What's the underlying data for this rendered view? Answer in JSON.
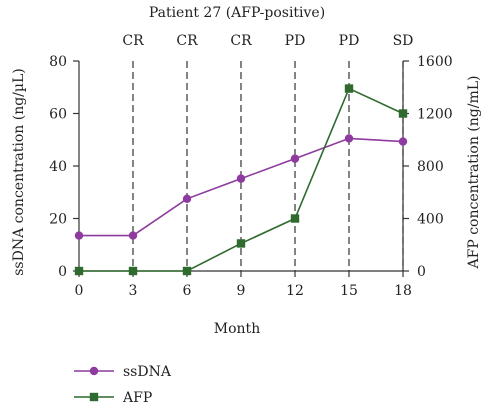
{
  "chart_data": {
    "type": "line",
    "title": "Patient 27 (AFP-positive)",
    "xlabel": "Month",
    "ylabel_left": "ssDNA concentration (ng/µL)",
    "ylabel_right": "AFP concentration (ng/mL)",
    "x": [
      0,
      3,
      6,
      9,
      12,
      15,
      18
    ],
    "xlim": [
      0,
      18
    ],
    "ylim_left": [
      0,
      80
    ],
    "ylim_right": [
      0,
      1600
    ],
    "xticks": [
      "0",
      "3",
      "6",
      "9",
      "12",
      "15",
      "18"
    ],
    "yticks_left": [
      "0",
      "20",
      "40",
      "60",
      "80"
    ],
    "yticks_right": [
      "0",
      "400",
      "800",
      "1200",
      "1600"
    ],
    "response_markers": [
      {
        "x": 3,
        "label": "CR"
      },
      {
        "x": 6,
        "label": "CR"
      },
      {
        "x": 9,
        "label": "CR"
      },
      {
        "x": 12,
        "label": "PD"
      },
      {
        "x": 15,
        "label": "PD"
      },
      {
        "x": 18,
        "label": "SD"
      }
    ],
    "series": [
      {
        "name": "ssDNA",
        "axis": "left",
        "marker": "circle",
        "color": "#8e3a9e",
        "values": [
          13.5,
          13.5,
          27.5,
          35.2,
          42.8,
          50.5,
          49.3
        ]
      },
      {
        "name": "AFP",
        "axis": "right",
        "marker": "square",
        "color": "#2f6a2f",
        "values": [
          0,
          0,
          0,
          210,
          400,
          1390,
          1200
        ]
      }
    ],
    "grid": false,
    "legend_position": "bottom-left"
  }
}
